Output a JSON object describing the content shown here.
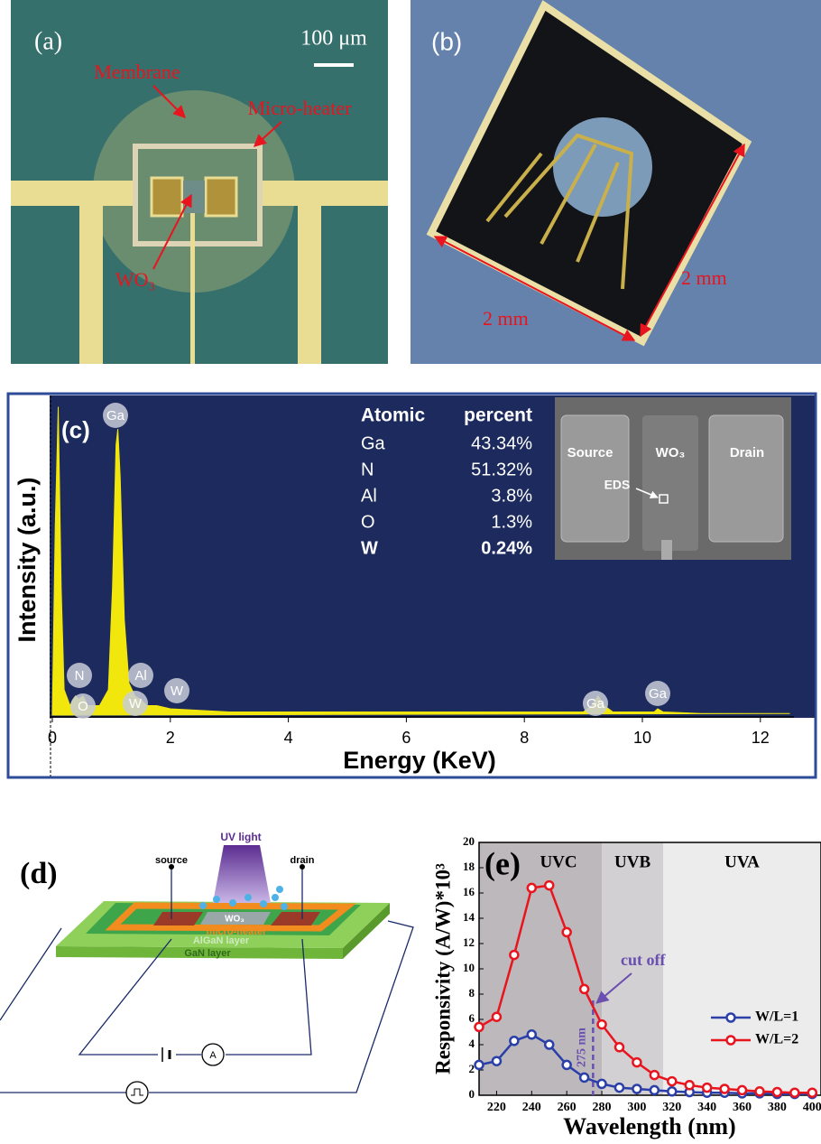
{
  "panels": {
    "a": {
      "label": "(a)",
      "scale": "100 μm",
      "membrane": "Membrane",
      "heater": "Micro-heater",
      "wo3": "WO₃"
    },
    "b": {
      "label": "(b)",
      "width": "2 mm",
      "height": "2 mm"
    },
    "d": {
      "label": "(d)",
      "uv": "UV light",
      "source": "source",
      "drain": "drain",
      "wo3": "WO₃",
      "heater": "micro-heater",
      "algan": "AlGaN layer",
      "gan": "GaN layer",
      "meter": "A"
    }
  },
  "chart_data": [
    {
      "type": "area",
      "panel_label": "(c)",
      "xlabel": "Energy (KeV)",
      "ylabel": "Intensity (a.u.)",
      "color": "#f2e70c",
      "x": [
        0,
        0.05,
        0.1,
        0.15,
        0.2,
        0.3,
        0.39,
        0.45,
        0.52,
        0.6,
        0.8,
        0.95,
        1.02,
        1.08,
        1.11,
        1.15,
        1.22,
        1.3,
        1.4,
        1.49,
        1.6,
        1.77,
        2,
        2.5,
        3,
        4,
        5,
        6,
        7,
        8,
        9,
        9.15,
        9.25,
        9.35,
        9.5,
        10.2,
        10.26,
        10.35,
        11,
        12.5
      ],
      "values": [
        0,
        60,
        97,
        40,
        8,
        3,
        6,
        5,
        6,
        3,
        3,
        8,
        40,
        85,
        90,
        75,
        30,
        10,
        6,
        5,
        3,
        3,
        2,
        1.5,
        1,
        1,
        1,
        1,
        1,
        1,
        1,
        3,
        6,
        3,
        1,
        1,
        2,
        1,
        0.5,
        0.5
      ],
      "xlim": [
        0,
        12.5
      ],
      "xticks": [
        0,
        2,
        4,
        6,
        8,
        10,
        12
      ],
      "ylim": [
        0,
        100
      ],
      "peak_labels": [
        "Ga",
        "N",
        "O",
        "Al",
        "W",
        "W",
        "Ga",
        "Ga"
      ],
      "table": {
        "header": [
          "Atomic",
          "percent"
        ],
        "rows": [
          [
            "Ga",
            "43.34%"
          ],
          [
            "N",
            "51.32%"
          ],
          [
            "Al",
            "3.8%"
          ],
          [
            "O",
            "1.3%"
          ],
          [
            "W",
            "0.24%"
          ]
        ]
      },
      "inset": {
        "source": "Source",
        "wo3": "WO₃",
        "drain": "Drain",
        "eds": "EDS"
      }
    },
    {
      "type": "line",
      "panel_label": "(e)",
      "xlabel": "Wavelength (nm)",
      "ylabel": "Responsivity (A/W)*10³",
      "x": [
        210,
        220,
        230,
        240,
        250,
        260,
        270,
        280,
        290,
        300,
        310,
        320,
        330,
        340,
        350,
        360,
        370,
        380,
        390,
        400
      ],
      "series": [
        {
          "name": "W/L=1",
          "color": "#2a3fa8",
          "values": [
            2.4,
            2.7,
            4.3,
            4.8,
            4.0,
            2.4,
            1.4,
            0.9,
            0.6,
            0.5,
            0.4,
            0.3,
            0.25,
            0.2,
            0.2,
            0.15,
            0.15,
            0.1,
            0.1,
            0.1
          ]
        },
        {
          "name": "W/L=2",
          "color": "#e8141e",
          "values": [
            5.4,
            6.2,
            11.1,
            16.4,
            16.6,
            12.9,
            8.4,
            5.6,
            3.8,
            2.6,
            1.6,
            1.1,
            0.8,
            0.6,
            0.5,
            0.4,
            0.3,
            0.25,
            0.2,
            0.2
          ]
        }
      ],
      "xlim": [
        210,
        405
      ],
      "xticks": [
        220,
        240,
        260,
        280,
        300,
        320,
        340,
        360,
        380,
        400
      ],
      "ylim": [
        0,
        20
      ],
      "yticks": [
        0,
        2,
        4,
        6,
        8,
        10,
        12,
        14,
        16,
        18,
        20
      ],
      "regions": [
        {
          "label": "UVC",
          "range": [
            210,
            280
          ],
          "color": "#bcb8bb"
        },
        {
          "label": "UVB",
          "range": [
            280,
            315
          ],
          "color": "#d3d0d3"
        },
        {
          "label": "UVA",
          "range": [
            315,
            405
          ],
          "color": "#ececec"
        }
      ],
      "cutoff": {
        "value": 275,
        "label": "275 nm",
        "annotation": "cut off",
        "color": "#6a4fb0"
      },
      "legend": "right"
    }
  ]
}
